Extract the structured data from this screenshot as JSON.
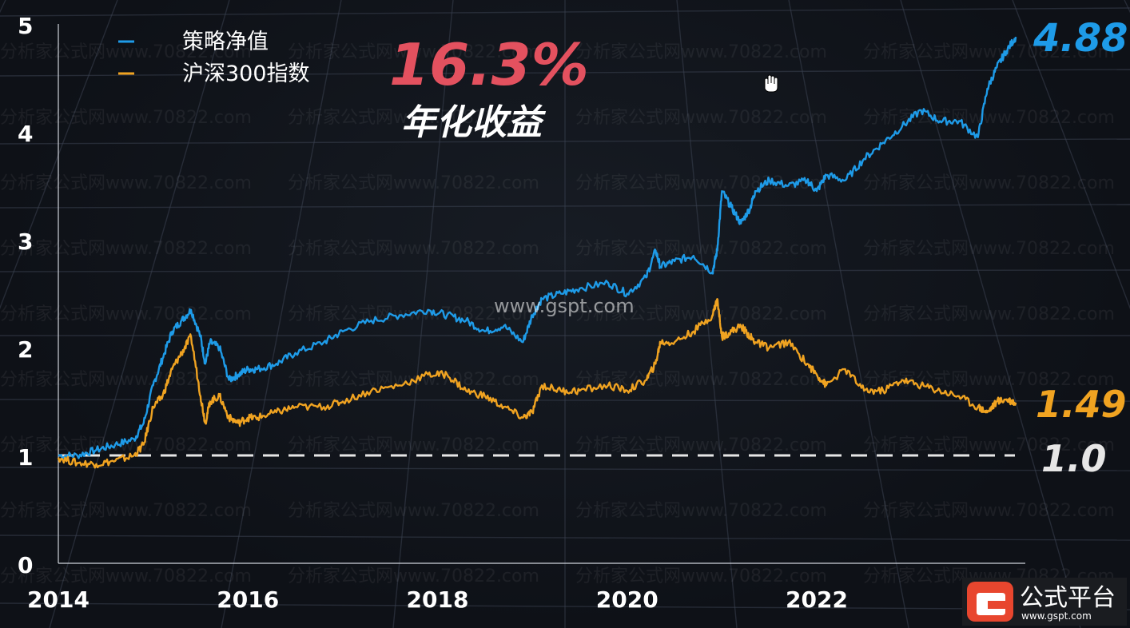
{
  "headline": {
    "value": "16.3%",
    "caption": "年化收益",
    "value_color": "#e3515f",
    "caption_color": "#ffffff"
  },
  "watermark": {
    "repeat_text": "分析家公式网www.70822.com",
    "center_text": "www.gspt.com"
  },
  "brand": {
    "name": "公式平台",
    "url": "www.gspt.com",
    "badge_color": "#e8462e"
  },
  "colors": {
    "strategy": "#1e9be8",
    "index": "#f0a321",
    "baseline": "#e6e6e6",
    "background": "#0e1117"
  },
  "chart_data": {
    "type": "line",
    "title": "",
    "xlabel": "",
    "ylabel": "",
    "xlim": [
      2014.0,
      2024.2
    ],
    "ylim": [
      0,
      5
    ],
    "x_ticks": [
      "2014",
      "2016",
      "2018",
      "2020",
      "2022"
    ],
    "x_tick_values": [
      2014,
      2016,
      2018,
      2020,
      2022
    ],
    "y_ticks": [
      "0",
      "1",
      "2",
      "3",
      "4",
      "5"
    ],
    "y_tick_values": [
      0,
      1,
      2,
      3,
      4,
      5
    ],
    "grid": true,
    "legend": {
      "placement": "top-left",
      "entries": [
        "策略净值",
        "沪深300指数"
      ]
    },
    "reference_line": {
      "y": 1.0,
      "label": "1.0",
      "style": "dashed"
    },
    "series": [
      {
        "name": "策略净值",
        "color": "#1e9be8",
        "end_label": "4.88",
        "x": [
          2014.0,
          2014.2,
          2014.4,
          2014.6,
          2014.8,
          2014.9,
          2015.0,
          2015.1,
          2015.2,
          2015.3,
          2015.4,
          2015.5,
          2015.55,
          2015.6,
          2015.7,
          2015.8,
          2015.9,
          2016.0,
          2016.1,
          2016.3,
          2016.5,
          2016.8,
          2017.0,
          2017.3,
          2017.6,
          2017.9,
          2018.1,
          2018.3,
          2018.5,
          2018.7,
          2018.9,
          2019.0,
          2019.1,
          2019.3,
          2019.5,
          2019.8,
          2020.0,
          2020.2,
          2020.3,
          2020.35,
          2020.5,
          2020.7,
          2020.9,
          2020.95,
          2021.0,
          2021.1,
          2021.2,
          2021.3,
          2021.35,
          2021.5,
          2021.7,
          2021.9,
          2022.0,
          2022.1,
          2022.3,
          2022.5,
          2022.7,
          2022.9,
          2023.1,
          2023.3,
          2023.5,
          2023.7,
          2023.8,
          2023.9,
          2024.0,
          2024.1
        ],
        "y": [
          1.0,
          1.0,
          1.05,
          1.1,
          1.15,
          1.3,
          1.65,
          1.9,
          2.15,
          2.25,
          2.35,
          2.1,
          1.85,
          2.05,
          2.0,
          1.7,
          1.75,
          1.8,
          1.8,
          1.85,
          1.95,
          2.05,
          2.15,
          2.25,
          2.3,
          2.35,
          2.3,
          2.25,
          2.15,
          2.2,
          2.05,
          2.3,
          2.45,
          2.5,
          2.55,
          2.6,
          2.5,
          2.65,
          2.9,
          2.75,
          2.8,
          2.85,
          2.7,
          2.9,
          3.45,
          3.3,
          3.15,
          3.3,
          3.45,
          3.55,
          3.5,
          3.55,
          3.45,
          3.6,
          3.55,
          3.75,
          3.9,
          4.05,
          4.2,
          4.1,
          4.1,
          3.95,
          4.4,
          4.6,
          4.75,
          4.88
        ]
      },
      {
        "name": "沪深300指数",
        "color": "#f0a321",
        "end_label": "1.49",
        "x": [
          2014.0,
          2014.2,
          2014.4,
          2014.6,
          2014.8,
          2014.9,
          2015.0,
          2015.1,
          2015.2,
          2015.3,
          2015.4,
          2015.5,
          2015.55,
          2015.6,
          2015.7,
          2015.8,
          2015.9,
          2016.0,
          2016.1,
          2016.3,
          2016.5,
          2016.8,
          2017.0,
          2017.3,
          2017.6,
          2017.9,
          2018.1,
          2018.3,
          2018.5,
          2018.7,
          2018.9,
          2019.0,
          2019.1,
          2019.3,
          2019.5,
          2019.8,
          2020.0,
          2020.2,
          2020.3,
          2020.35,
          2020.5,
          2020.7,
          2020.9,
          2020.95,
          2021.0,
          2021.1,
          2021.2,
          2021.3,
          2021.35,
          2021.5,
          2021.7,
          2021.9,
          2022.0,
          2022.1,
          2022.3,
          2022.5,
          2022.7,
          2022.9,
          2023.1,
          2023.3,
          2023.5,
          2023.7,
          2023.8,
          2023.9,
          2024.0,
          2024.1
        ],
        "y": [
          0.98,
          0.93,
          0.92,
          0.95,
          1.0,
          1.1,
          1.45,
          1.55,
          1.8,
          1.95,
          2.1,
          1.55,
          1.3,
          1.5,
          1.55,
          1.35,
          1.3,
          1.35,
          1.35,
          1.4,
          1.45,
          1.45,
          1.5,
          1.6,
          1.65,
          1.75,
          1.75,
          1.6,
          1.55,
          1.45,
          1.35,
          1.4,
          1.65,
          1.6,
          1.6,
          1.65,
          1.6,
          1.7,
          1.85,
          2.05,
          2.05,
          2.15,
          2.3,
          2.45,
          2.1,
          2.15,
          2.2,
          2.1,
          2.05,
          2.0,
          2.05,
          1.85,
          1.75,
          1.65,
          1.8,
          1.6,
          1.6,
          1.7,
          1.65,
          1.6,
          1.55,
          1.45,
          1.4,
          1.5,
          1.52,
          1.49
        ]
      }
    ]
  }
}
